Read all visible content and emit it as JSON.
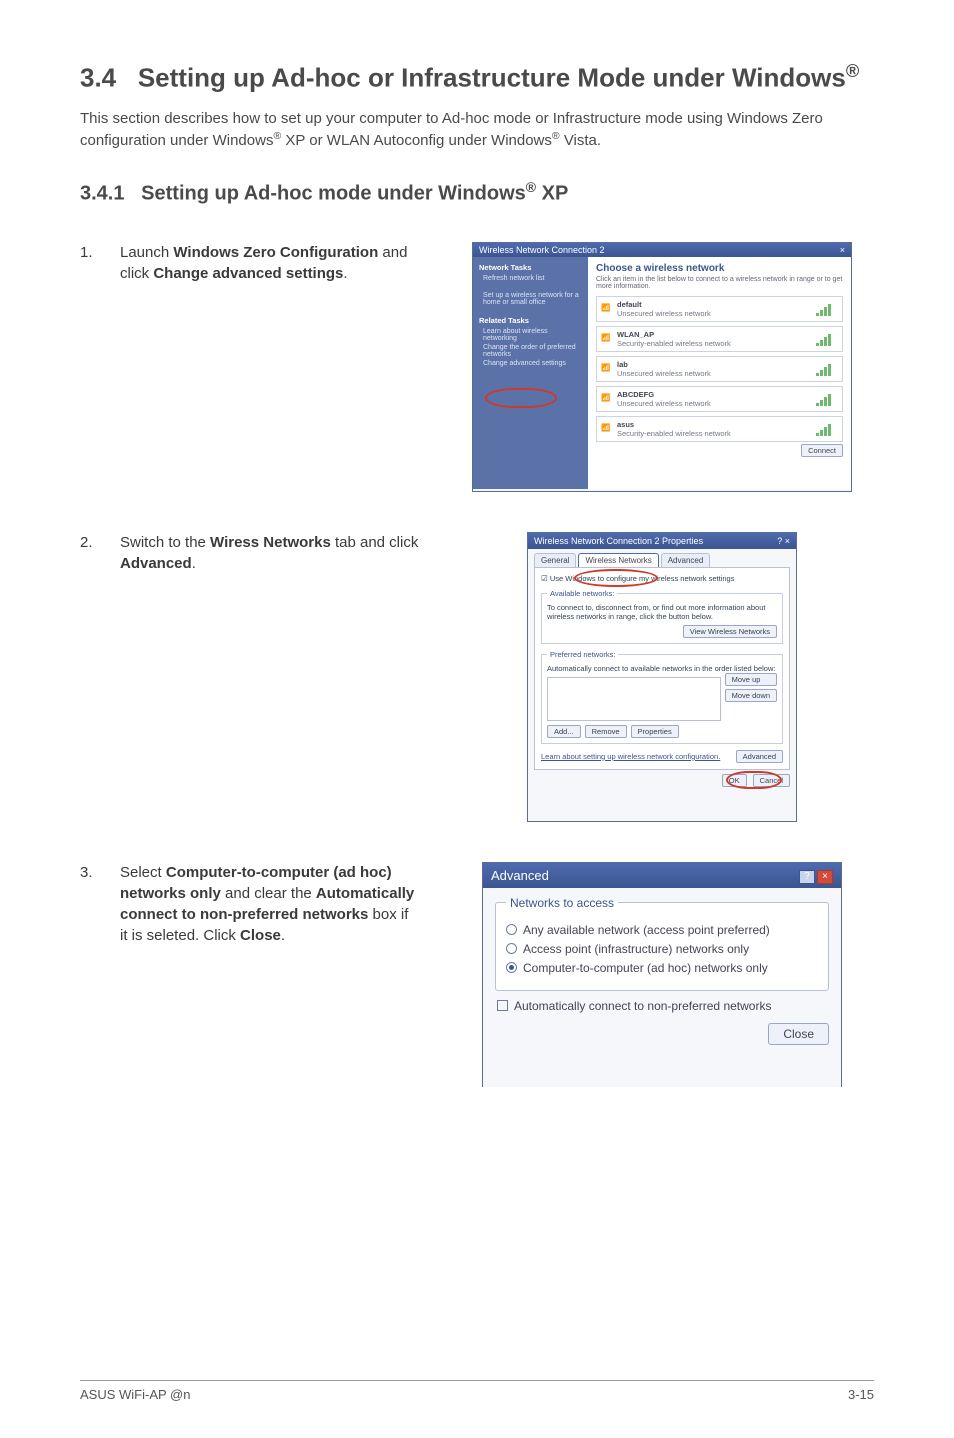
{
  "page": {
    "h1_a": "3.4",
    "h1_b": "Setting up Ad-hoc or Infrastructure Mode under Windows",
    "reg": "®",
    "intro_a": "This section describes how to set up your computer to Ad-hoc mode or Infrastructure mode using Windows Zero configuration under Windows",
    "intro_b": " XP or WLAN Autoconfig under Windows",
    "intro_c": " Vista.",
    "h2_a": "3.4.1",
    "h2_b": "Setting up Ad-hoc mode under Windows",
    "h2_c": " XP"
  },
  "steps": {
    "s1_num": "1.",
    "s1_a": "Launch ",
    "s1_b": "Windows Zero Configuration",
    "s1_c": " and click ",
    "s1_d": "Change advanced settings",
    "s1_e": ".",
    "s2_num": "2.",
    "s2_a": "Switch to the ",
    "s2_b": "Wiress Networks",
    "s2_c": " tab and click ",
    "s2_d": "Advanced",
    "s2_e": ".",
    "s3_num": "3.",
    "s3_a": "Select ",
    "s3_b": "Computer-to-computer (ad hoc) networks only",
    "s3_c": " and clear the ",
    "s3_d": "Automatically connect to non-preferred networks",
    "s3_e": " box if it is seleted. Click ",
    "s3_f": "Close",
    "s3_g": "."
  },
  "shot1": {
    "title": "Wireless Network Connection 2",
    "close": "×",
    "left_g1": "Network Tasks",
    "left_g1_i1": "Refresh network list",
    "left_g2_i1": "Set up a wireless network for a home or small office",
    "left_g3": "Related Tasks",
    "left_g3_i1": "Learn about wireless networking",
    "left_g3_i2": "Change the order of preferred networks",
    "left_g3_i3": "Change advanced settings",
    "right_header": "Choose a wireless network",
    "right_sub": "Click an item in the list below to connect to a wireless network in range or to get more information.",
    "nets": [
      {
        "name": "default",
        "sub": "Unsecured wireless network"
      },
      {
        "name": "WLAN_AP",
        "sub": "Security-enabled wireless network"
      },
      {
        "name": "lab",
        "sub": "Unsecured wireless network"
      },
      {
        "name": "ABCDEFG",
        "sub": "Unsecured wireless network"
      },
      {
        "name": "asus",
        "sub": "Security-enabled wireless network"
      }
    ],
    "connect": "Connect"
  },
  "shot2": {
    "title": "Wireless Network Connection 2 Properties",
    "winclose": "? ×",
    "tab1": "General",
    "tab2": "Wireless Networks",
    "tab3": "Advanced",
    "line1": "Use Windows to configure my wireless network settings",
    "fs1": "Available networks:",
    "fs1_txt": "To connect to, disconnect from, or find out more information about wireless networks in range, click the button below.",
    "fs1_btn": "View Wireless Networks",
    "fs2": "Preferred networks:",
    "fs2_txt": "Automatically connect to available networks in the order listed below:",
    "btn_up": "Move up",
    "btn_dn": "Move down",
    "btn_add": "Add...",
    "btn_rem": "Remove",
    "btn_prop": "Properties",
    "adv_txt": "Learn about setting up wireless network configuration.",
    "adv_btn": "Advanced",
    "ok": "OK",
    "cancel": "Cancel"
  },
  "shot3": {
    "title": "Advanced",
    "help": "?",
    "close": "×",
    "legend": "Networks to access",
    "r1": "Any available network (access point preferred)",
    "r2": "Access point (infrastructure) networks only",
    "r3": "Computer-to-computer (ad hoc) networks only",
    "chk": "Automatically connect to non-preferred networks",
    "closebtn": "Close"
  },
  "footer": {
    "left": "ASUS WiFi-AP @n",
    "right": "3-15"
  }
}
